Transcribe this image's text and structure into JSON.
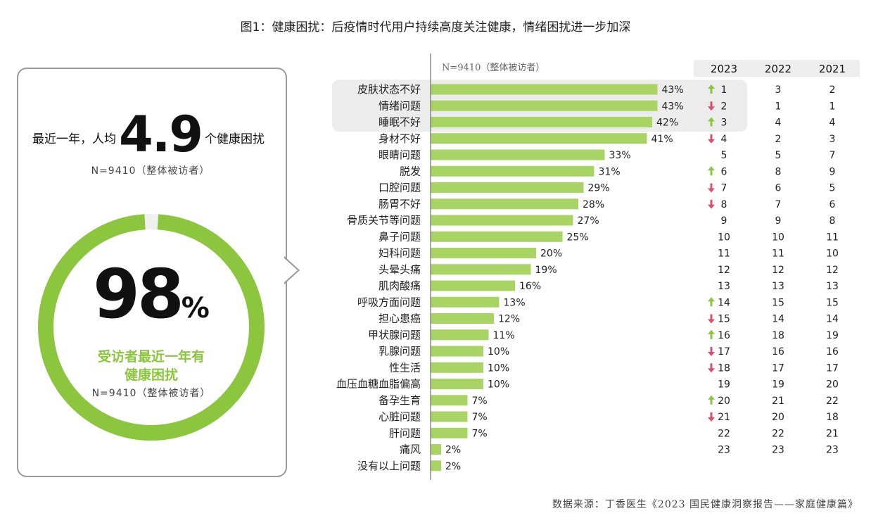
{
  "title": "图1：健康困扰：后疫情时代用户持续高度关注健康，情绪困扰进一步加深",
  "summary": {
    "avg_prefix": "最近一年，人均",
    "avg_value": "4.9",
    "avg_suffix": "个健康困扰",
    "avg_sample": "N=9410（整体被访者）",
    "ring_percent": "98",
    "ring_percent_symbol": "%",
    "ring_fraction": 0.98,
    "ring_label_line1": "受访者最近一年有",
    "ring_label_line2": "健康困扰",
    "ring_sample": "N=9410（整体被访者）"
  },
  "colors": {
    "bar": "#a8d464",
    "ring": "#8cc63f",
    "ring_label": "#8cc63f",
    "arrow_up": "#8cc63f",
    "arrow_down": "#d9506e",
    "highlight": "#ececec",
    "year_header_bg": "#eeeeee"
  },
  "chart_data": {
    "type": "bar",
    "orientation": "horizontal",
    "sample_note": "N=9410（整体被访者）",
    "categories": [
      "皮肤状态不好",
      "情绪问题",
      "睡眠不好",
      "身材不好",
      "眼睛问题",
      "脱发",
      "口腔问题",
      "肠胃不好",
      "骨质关节等问题",
      "鼻子问题",
      "妇科问题",
      "头晕头痛",
      "肌肉酸痛",
      "呼吸方面问题",
      "担心患癌",
      "甲状腺问题",
      "乳腺问题",
      "性生活",
      "血压血糖血脂偏高",
      "备孕生育",
      "心脏问题",
      "肝问题",
      "痛风",
      "没有以上问题"
    ],
    "values": [
      43,
      43,
      42,
      41,
      33,
      31,
      29,
      28,
      27,
      25,
      20,
      19,
      16,
      13,
      12,
      11,
      10,
      10,
      10,
      7,
      7,
      7,
      2,
      2
    ],
    "value_labels": [
      "43%",
      "43%",
      "42%",
      "41%",
      "33%",
      "31%",
      "29%",
      "28%",
      "27%",
      "25%",
      "20%",
      "19%",
      "16%",
      "13%",
      "12%",
      "11%",
      "10%",
      "10%",
      "10%",
      "7%",
      "7%",
      "7%",
      "2%",
      "2%"
    ],
    "highlighted_rows": [
      0,
      1,
      2
    ],
    "rank_columns": [
      "2023",
      "2022",
      "2021"
    ],
    "ranks_2023": [
      "1",
      "2",
      "3",
      "4",
      "5",
      "6",
      "7",
      "8",
      "9",
      "10",
      "11",
      "12",
      "13",
      "14",
      "15",
      "16",
      "17",
      "18",
      "19",
      "20",
      "21",
      "22",
      "23"
    ],
    "ranks_2022": [
      "3",
      "1",
      "4",
      "2",
      "5",
      "8",
      "6",
      "7",
      "9",
      "10",
      "11",
      "12",
      "13",
      "15",
      "14",
      "18",
      "16",
      "17",
      "19",
      "21",
      "20",
      "22",
      "23"
    ],
    "ranks_2021": [
      "2",
      "1",
      "4",
      "3",
      "7",
      "9",
      "5",
      "6",
      "8",
      "11",
      "10",
      "12",
      "13",
      "15",
      "14",
      "19",
      "16",
      "17",
      "20",
      "22",
      "18",
      "21",
      "23"
    ],
    "rank_trend": [
      "up",
      "down",
      "up",
      "down",
      "",
      "up",
      "down",
      "down",
      "",
      "",
      "",
      "",
      "",
      "up",
      "down",
      "up",
      "down",
      "down",
      "",
      "up",
      "down",
      "",
      ""
    ]
  },
  "source": "数据来源：丁香医生《2023 国民健康洞察报告——家庭健康篇》"
}
